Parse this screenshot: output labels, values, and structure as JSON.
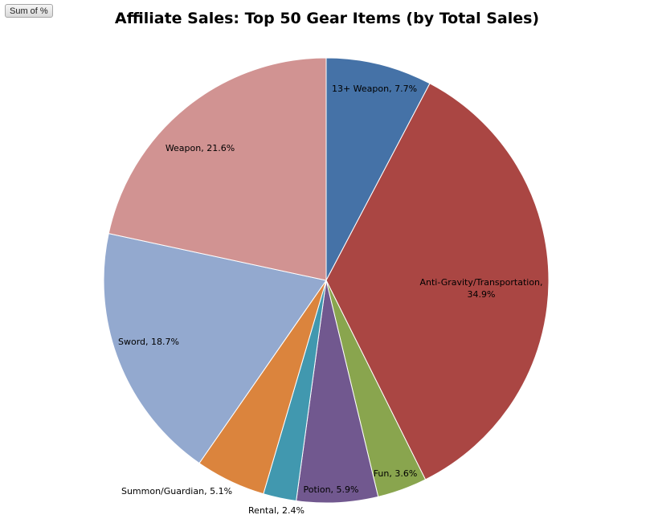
{
  "field_button": {
    "label": "Sum of %"
  },
  "chart_data": {
    "type": "pie",
    "title": "Affiliate Sales: Top 50 Gear Items (by Total Sales)",
    "start_angle_deg": 0,
    "direction": "clockwise",
    "slices": [
      {
        "name": "13+ Weapon",
        "value": 7.7,
        "label_lines": [
          "13+ Weapon, 7.7%"
        ],
        "color": "#4572A7"
      },
      {
        "name": "Anti-Gravity/Transportation",
        "value": 34.9,
        "label_lines": [
          "Anti-Gravity/Transportation,",
          "34.9%"
        ],
        "color": "#AA4643"
      },
      {
        "name": "Fun",
        "value": 3.6,
        "label_lines": [
          "Fun, 3.6%"
        ],
        "color": "#89A54E"
      },
      {
        "name": "Potion",
        "value": 5.9,
        "label_lines": [
          "Potion, 5.9%"
        ],
        "color": "#71588F"
      },
      {
        "name": "Rental",
        "value": 2.4,
        "label_lines": [
          "Rental, 2.4%"
        ],
        "color": "#4198AF"
      },
      {
        "name": "Summon/Guardian",
        "value": 5.1,
        "label_lines": [
          "Summon/Guardian, 5.1%"
        ],
        "color": "#DB843D"
      },
      {
        "name": "Sword",
        "value": 18.7,
        "label_lines": [
          "Sword, 18.7%"
        ],
        "color": "#93A9CF"
      },
      {
        "name": "Weapon",
        "value": 21.6,
        "label_lines": [
          "Weapon, 21.6%"
        ],
        "color": "#D19392"
      }
    ]
  }
}
